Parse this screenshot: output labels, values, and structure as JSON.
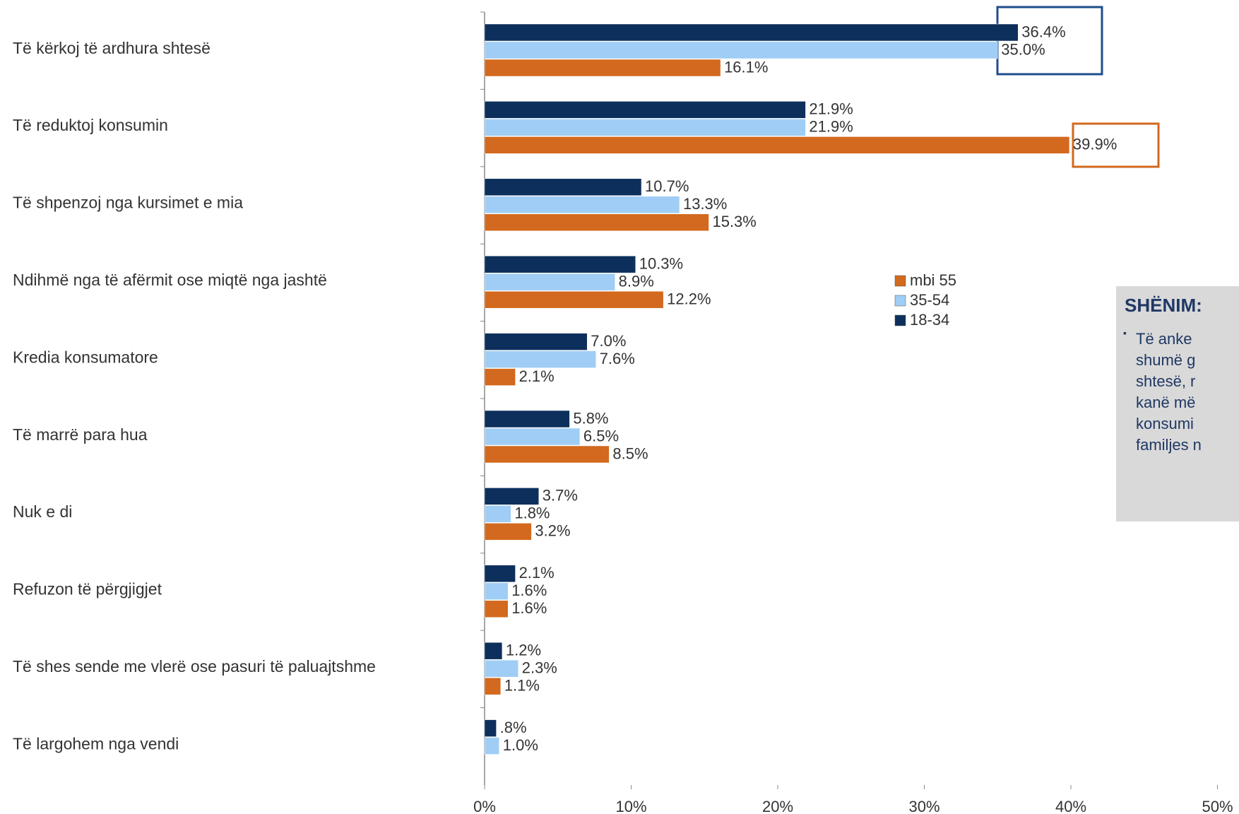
{
  "chart_data": {
    "type": "bar",
    "orientation": "horizontal",
    "categories": [
      "Të kërkoj të ardhura shtesë",
      "Të reduktoj konsumin",
      "Të shpenzoj nga kursimet e mia",
      "Ndihmë nga të afërmit ose miqtë nga jashtë",
      "Kredia konsumatore",
      "Të marrë para hua",
      "Nuk e di",
      "Refuzon të përgjigjet",
      "Të shes sende me vlerë ose pasuri të paluajtshme",
      "Të largohem nga vendi"
    ],
    "series": [
      {
        "name": "mbi 55",
        "color": "#d2691e",
        "values": [
          16.1,
          39.9,
          15.3,
          12.2,
          2.1,
          8.5,
          3.2,
          1.6,
          1.1,
          null
        ],
        "value_labels": [
          "16.1%",
          "39.9%",
          "15.3%",
          "12.2%",
          "2.1%",
          "8.5%",
          "3.2%",
          "1.6%",
          "1.1%",
          null
        ]
      },
      {
        "name": "35-54",
        "color": "#9fcdf5",
        "values": [
          35.0,
          21.9,
          13.3,
          8.9,
          7.6,
          6.5,
          1.8,
          1.6,
          2.3,
          1.0
        ],
        "value_labels": [
          "35.0%",
          "21.9%",
          "13.3%",
          "8.9%",
          "7.6%",
          "6.5%",
          "1.8%",
          "1.6%",
          "2.3%",
          "1.0%"
        ]
      },
      {
        "name": "18-34",
        "color": "#0d2f5c",
        "values": [
          36.4,
          21.9,
          10.7,
          10.3,
          7.0,
          5.8,
          3.7,
          2.1,
          1.2,
          0.8
        ],
        "value_labels": [
          "36.4%",
          "21.9%",
          "10.7%",
          "10.3%",
          "7.0%",
          "5.8%",
          "3.7%",
          "2.1%",
          "1.2%",
          ".8%"
        ]
      }
    ],
    "xlim": [
      0,
      50
    ],
    "xticks": [
      {
        "value": 0,
        "label": "0%"
      },
      {
        "value": 10,
        "label": "10%"
      },
      {
        "value": 20,
        "label": "20%"
      },
      {
        "value": 30,
        "label": "30%"
      },
      {
        "value": 40,
        "label": "40%"
      },
      {
        "value": 50,
        "label": "50%"
      }
    ],
    "legend": "center"
  },
  "note": {
    "title": "SHËNIM:",
    "lines": [
      "Të anke",
      "shumë g",
      "shtesë, r",
      "kanë më",
      "konsumi",
      "familjes n"
    ]
  }
}
